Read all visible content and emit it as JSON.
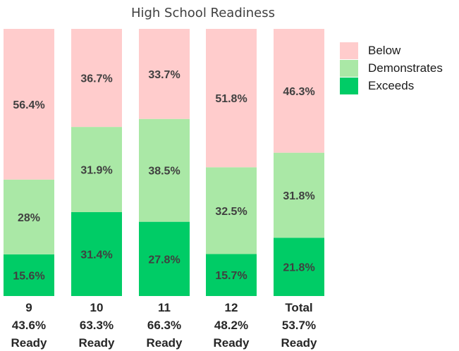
{
  "chart_data": {
    "type": "bar",
    "stacked": true,
    "title": "High School Readiness",
    "categories": [
      "9",
      "10",
      "11",
      "12",
      "Total"
    ],
    "category_summaries": [
      [
        "9",
        "43.6%",
        "Ready"
      ],
      [
        "10",
        "63.3%",
        "Ready"
      ],
      [
        "11",
        "66.3%",
        "Ready"
      ],
      [
        "12",
        "48.2%",
        "Ready"
      ],
      [
        "Total",
        "53.7%",
        "Ready"
      ]
    ],
    "series": [
      {
        "name": "Exceeds",
        "color": "#00cc66",
        "values": [
          15.6,
          31.4,
          27.8,
          15.7,
          21.8
        ],
        "labels": [
          "15.6%",
          "31.4%",
          "27.8%",
          "15.7%",
          "21.8%"
        ]
      },
      {
        "name": "Demonstrates",
        "color": "#aae8a6",
        "values": [
          28,
          31.9,
          38.5,
          32.5,
          31.8
        ],
        "labels": [
          "28%",
          "31.9%",
          "38.5%",
          "32.5%",
          "31.8%"
        ]
      },
      {
        "name": "Below",
        "color": "#ffcccc",
        "values": [
          56.4,
          36.7,
          33.7,
          51.8,
          46.3
        ],
        "labels": [
          "56.4%",
          "36.7%",
          "33.7%",
          "51.8%",
          "46.3%"
        ]
      }
    ],
    "legend_order": [
      "Below",
      "Demonstrates",
      "Exceeds"
    ],
    "legend_position": "top-right",
    "ylim": [
      0,
      100
    ],
    "grid": false
  }
}
